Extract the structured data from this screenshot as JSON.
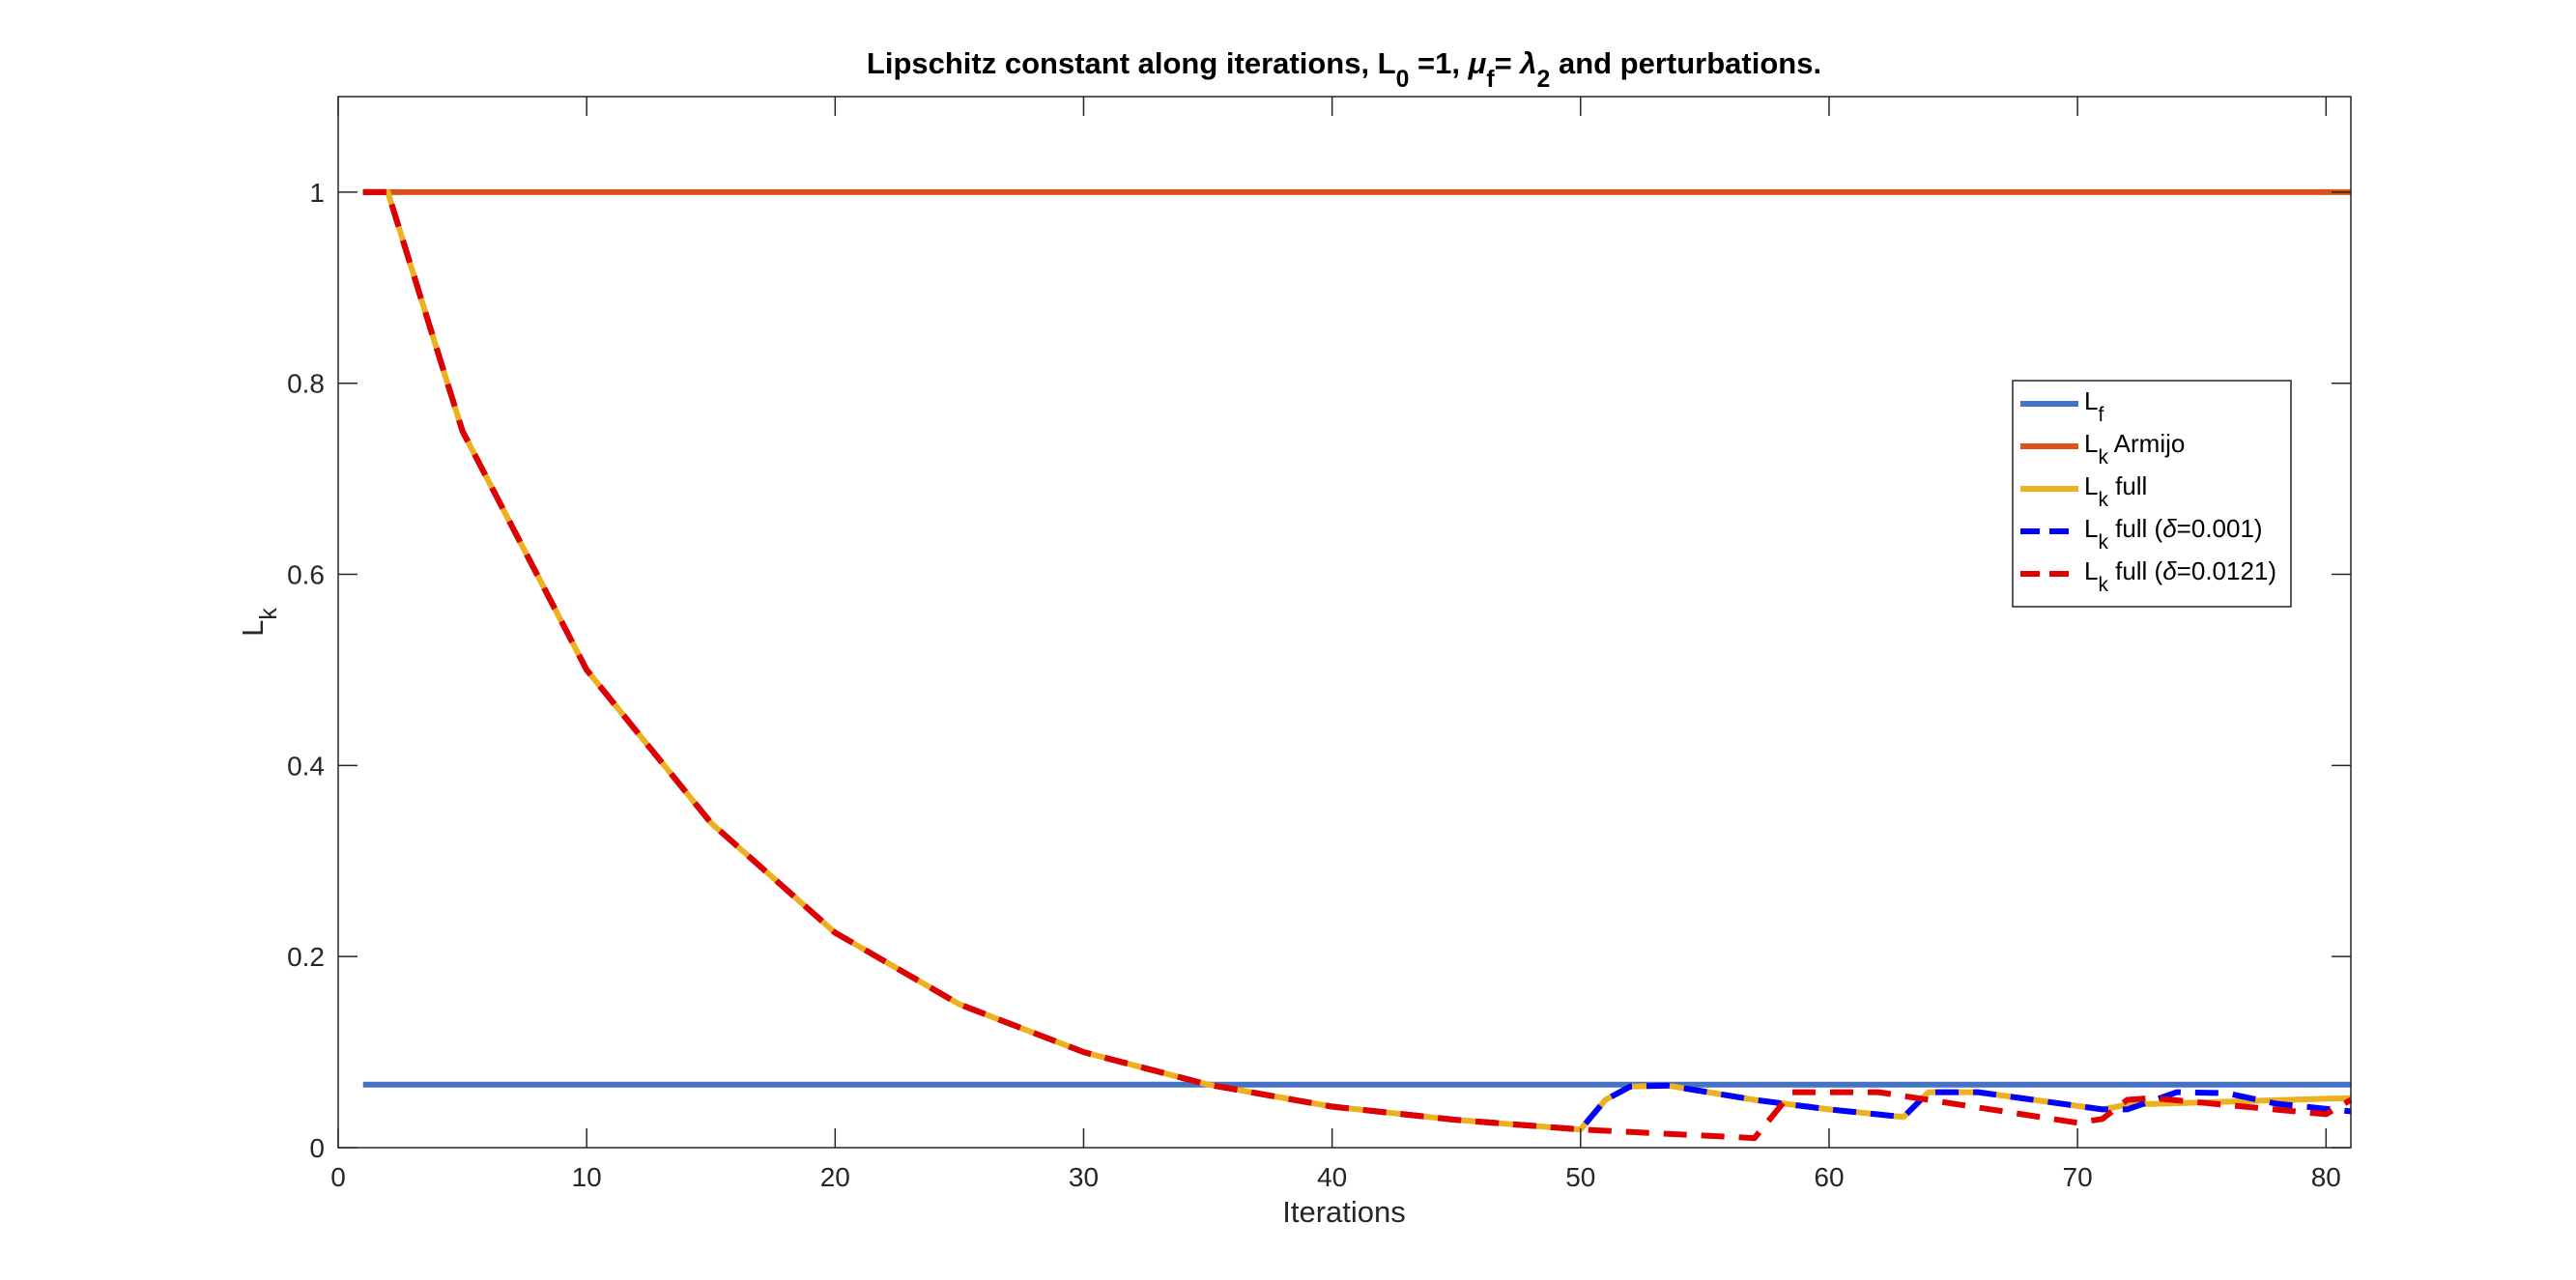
{
  "chart_data": {
    "type": "line",
    "title": {
      "text": "Lipschitz constant along iterations, L",
      "parts": [
        {
          "t": "Lipschitz constant along iterations, L"
        },
        {
          "t": "0",
          "sub": true
        },
        {
          "t": " =1, "
        },
        {
          "t": "μ",
          "italic": true
        },
        {
          "t": "f",
          "sub": true
        },
        {
          "t": "= "
        },
        {
          "t": "λ",
          "italic": true
        },
        {
          "t": "2",
          "sub": true
        },
        {
          "t": " and perturbations."
        }
      ]
    },
    "xlabel": "Iterations",
    "ylabel": {
      "main": "L",
      "sub": "k"
    },
    "xlim": [
      0,
      81
    ],
    "ylim": [
      0,
      1.1
    ],
    "xticks": [
      0,
      10,
      20,
      30,
      40,
      50,
      60,
      70,
      80
    ],
    "yticks": [
      0,
      0.2,
      0.4,
      0.6,
      0.8,
      1
    ],
    "xtick_labels": [
      "0",
      "10",
      "20",
      "30",
      "40",
      "50",
      "60",
      "70",
      "80"
    ],
    "ytick_labels": [
      "0",
      "0.2",
      "0.4",
      "0.6",
      "0.8",
      "1"
    ],
    "grid": false,
    "legend_position": "east",
    "series": [
      {
        "name": "L_f",
        "legend_label": {
          "main": "L",
          "sub": "f",
          "rest": ""
        },
        "color": "#4472C4",
        "dashed": false,
        "x": [
          1,
          81
        ],
        "y": [
          0.066,
          0.066
        ]
      },
      {
        "name": "L_k Armijo",
        "legend_label": {
          "main": "L",
          "sub": "k",
          "rest": " Armijo"
        },
        "color": "#D95319",
        "dashed": false,
        "x": [
          1,
          81
        ],
        "y": [
          1.0,
          1.0
        ]
      },
      {
        "name": "L_k full",
        "legend_label": {
          "main": "L",
          "sub": "k",
          "rest": " full"
        },
        "color": "#EDB120",
        "dashed": false,
        "x": [
          1,
          2,
          5,
          10,
          15,
          20,
          25,
          30,
          35,
          40,
          45,
          50,
          51,
          52,
          53.5,
          57,
          60,
          63,
          64,
          66,
          71,
          72,
          81
        ],
        "y": [
          1.0,
          1.0,
          0.75,
          0.5,
          0.34,
          0.225,
          0.15,
          0.1,
          0.066,
          0.043,
          0.029,
          0.019,
          0.05,
          0.064,
          0.065,
          0.05,
          0.04,
          0.032,
          0.058,
          0.058,
          0.04,
          0.045,
          0.052
        ]
      },
      {
        "name": "L_k full (δ=0.001)",
        "legend_label": {
          "main": "L",
          "sub": "k",
          "rest": " full (δ=0.001)"
        },
        "color": "#0000FF",
        "dashed": true,
        "x": [
          1,
          2,
          5,
          10,
          15,
          20,
          25,
          30,
          35,
          40,
          45,
          50,
          51,
          52,
          53.5,
          57,
          60,
          63,
          64,
          66,
          71,
          72,
          74,
          76,
          78,
          81
        ],
        "y": [
          1.0,
          1.0,
          0.75,
          0.5,
          0.34,
          0.225,
          0.15,
          0.1,
          0.066,
          0.043,
          0.029,
          0.019,
          0.05,
          0.064,
          0.065,
          0.05,
          0.04,
          0.032,
          0.058,
          0.058,
          0.04,
          0.04,
          0.058,
          0.057,
          0.046,
          0.038
        ]
      },
      {
        "name": "L_k full (δ=0.0121)",
        "legend_label": {
          "main": "L",
          "sub": "k",
          "rest": " full (δ=0.0121)"
        },
        "color": "#E00000",
        "dashed": true,
        "x": [
          1,
          2,
          5,
          10,
          15,
          20,
          25,
          30,
          35,
          40,
          45,
          50,
          57,
          58.5,
          62,
          70,
          71,
          72,
          73,
          80,
          81
        ],
        "y": [
          1.0,
          1.0,
          0.75,
          0.5,
          0.34,
          0.225,
          0.15,
          0.1,
          0.066,
          0.043,
          0.029,
          0.019,
          0.01,
          0.058,
          0.058,
          0.026,
          0.03,
          0.05,
          0.052,
          0.035,
          0.05
        ]
      }
    ]
  }
}
